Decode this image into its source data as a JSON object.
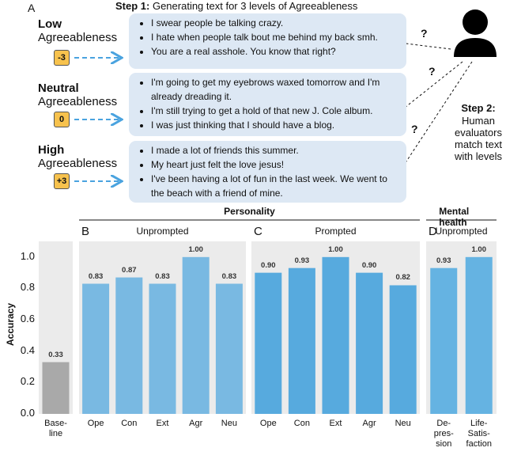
{
  "diagram": {
    "panel_label": "A",
    "step1": {
      "label": "Step 1:",
      "text": "Generating text for 3 levels of Agreeableness"
    },
    "levels": [
      {
        "name": "Low",
        "trait": "Agreeableness",
        "score": "-3",
        "texts": [
          "I swear people be talking crazy.",
          "I hate when people talk bout me behind my back smh.",
          "You are a real asshole. You know that right?"
        ]
      },
      {
        "name": "Neutral",
        "trait": "Agreeableness",
        "score": "0",
        "texts": [
          "I'm going to get my eyebrows waxed tomorrow and I'm already dreading it.",
          "I'm still trying to get a hold of that new J. Cole album.",
          "I was just thinking that I should have a blog."
        ]
      },
      {
        "name": "High",
        "trait": "Agreeableness",
        "score": "+3",
        "texts": [
          "I made a lot of friends this summer.",
          "My heart just felt the love jesus!",
          "I've been having a lot of fun in the last week. We went to the beach with a friend of mine."
        ]
      }
    ],
    "question_marks": [
      "?",
      "?",
      "?"
    ],
    "step2": {
      "label": "Step 2:",
      "text": "Human\nevaluators\nmatch text\nwith levels"
    }
  },
  "chart_data": [
    {
      "type": "bar",
      "ylabel": "Accuracy",
      "categories": [
        "Base-\nline"
      ],
      "values": [
        0.33
      ],
      "value_labels": [
        "0.33"
      ],
      "color": "#a9a9a9",
      "ylim": [
        0,
        1.1
      ],
      "yticks": [
        {
          "value": 0,
          "label": "0.0"
        },
        {
          "value": 0.2,
          "label": "0.2"
        },
        {
          "value": 0.4,
          "label": "0.4"
        },
        {
          "value": 0.6,
          "label": "0.6"
        },
        {
          "value": 0.8,
          "label": "0.8"
        },
        {
          "value": 1,
          "label": "1.0"
        }
      ]
    },
    {
      "type": "bar",
      "group": "Personality",
      "panel_label": "B",
      "title": "Unprompted",
      "categories": [
        "Ope",
        "Con",
        "Ext",
        "Agr",
        "Neu"
      ],
      "values": [
        0.83,
        0.87,
        0.83,
        1.0,
        0.83
      ],
      "value_labels": [
        "0.83",
        "0.87",
        "0.83",
        "1.00",
        "0.83"
      ],
      "color": "#79b9e2",
      "ylim": [
        0,
        1.1
      ]
    },
    {
      "type": "bar",
      "panel_label": "C",
      "title": "Prompted",
      "categories": [
        "Ope",
        "Con",
        "Ext",
        "Agr",
        "Neu"
      ],
      "values": [
        0.9,
        0.93,
        1.0,
        0.9,
        0.82
      ],
      "value_labels": [
        "0.90",
        "0.93",
        "1.00",
        "0.90",
        "0.82"
      ],
      "color": "#57aade",
      "ylim": [
        0,
        1.1
      ]
    },
    {
      "type": "bar",
      "group": "Mental health",
      "panel_label": "D",
      "title": "Unprompted",
      "categories": [
        "De-\npres-\nsion",
        "Life-\nSatis-\nfaction"
      ],
      "values": [
        0.93,
        1.0
      ],
      "value_labels": [
        "0.93",
        "1.00"
      ],
      "color": "#65b3e2",
      "ylim": [
        0,
        1.1
      ]
    }
  ]
}
